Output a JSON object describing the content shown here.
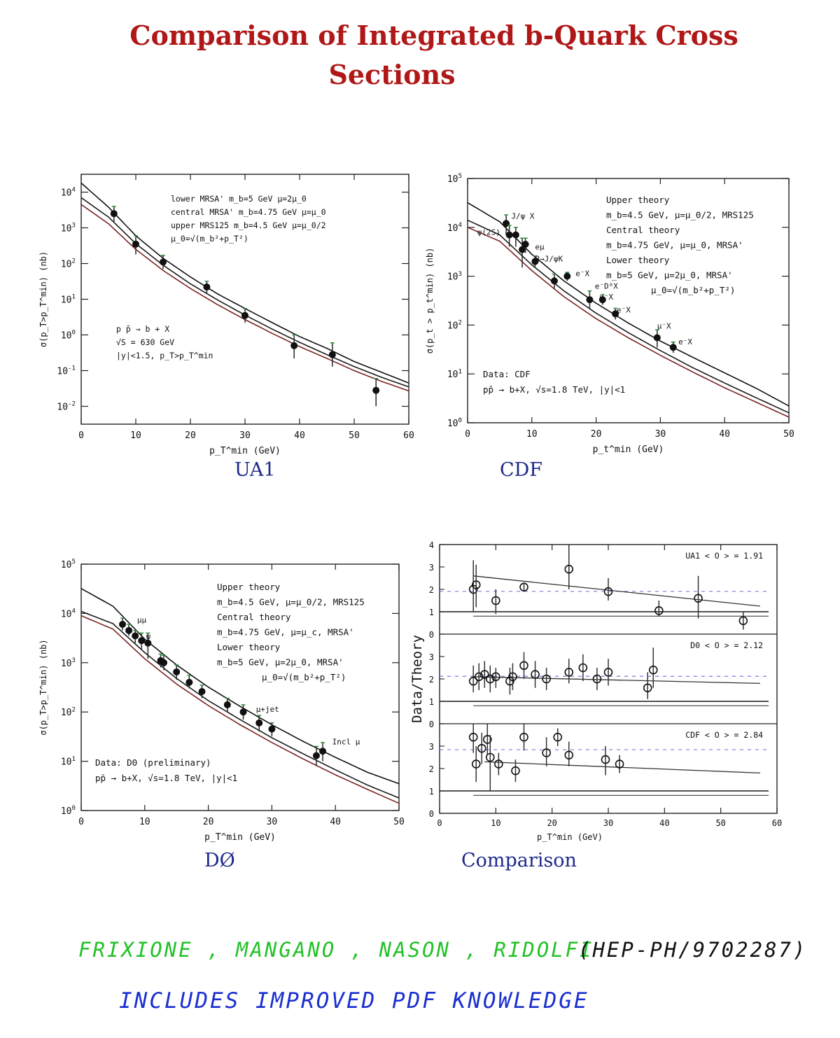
{
  "page": {
    "title_line1": "Comparison of Integrated b-Quark Cross",
    "title_line2": "Sections",
    "footer_line1_authors": "FRIXIONE , MANGANO , NASON , RIDOLFI",
    "footer_line1_ref": "(HEP-PH/9702287)",
    "footer_line2": "INCLUDES IMPROVED PDF KNOWLEDGE",
    "colors": {
      "title": "#b01818",
      "caption": "#1d2a8a",
      "footer1": "#22c228",
      "footer2": "#1a2fd0",
      "ref": "#111111"
    }
  },
  "chart_data": [
    {
      "id": "ua1",
      "type": "scatter",
      "caption": "UA1",
      "xlabel": "p_T^min (GeV)",
      "ylabel": "σ(p_T>p_T^min) (nb)",
      "xlim": [
        0,
        60
      ],
      "ylim_log10": [
        -2.5,
        4.5
      ],
      "yscale": "log",
      "xticks": [
        "0",
        "10",
        "20",
        "30",
        "40",
        "50",
        "60"
      ],
      "yticks": [
        "10^-2",
        "10^-1",
        "10^0",
        "10^1",
        "10^2",
        "10^3",
        "10^4"
      ],
      "legend_text": [
        "lower   MRSA' m_b=5 GeV  μ=2μ_0",
        "central  MRSA' m_b=4.75 GeV  μ=μ_0",
        "upper   MRS125 m_b=4.5 GeV  μ=μ_0/2",
        "μ_0=√(m_b²+p_T²)"
      ],
      "info_text": [
        "p p̄ → b + X",
        "√S = 630 GeV",
        "|y|<1.5, p_T>p_T^min"
      ],
      "curves": [
        {
          "name": "upper",
          "x": [
            0,
            5,
            10,
            15,
            20,
            25,
            30,
            35,
            40,
            45,
            50,
            55,
            60
          ],
          "y": [
            18000,
            3800,
            600,
            140,
            42,
            14,
            5.5,
            2.2,
            0.9,
            0.42,
            0.18,
            0.09,
            0.045
          ]
        },
        {
          "name": "central",
          "x": [
            0,
            5,
            10,
            15,
            20,
            25,
            30,
            35,
            40,
            45,
            50,
            55,
            60
          ],
          "y": [
            7000,
            2000,
            360,
            90,
            27,
            9.5,
            3.6,
            1.45,
            0.62,
            0.28,
            0.13,
            0.065,
            0.035
          ]
        },
        {
          "name": "lower",
          "x": [
            0,
            5,
            10,
            15,
            20,
            25,
            30,
            35,
            40,
            45,
            50,
            55,
            60
          ],
          "y": [
            4500,
            1300,
            250,
            64,
            20,
            7,
            2.7,
            1.1,
            0.47,
            0.22,
            0.1,
            0.05,
            0.027
          ]
        }
      ],
      "points": [
        {
          "x": 6,
          "y": 2500,
          "lo": 1400,
          "hi": 4000
        },
        {
          "x": 10,
          "y": 350,
          "lo": 180,
          "hi": 600
        },
        {
          "x": 15,
          "y": 110,
          "lo": 70,
          "hi": 170
        },
        {
          "x": 23,
          "y": 22,
          "lo": 14,
          "hi": 32
        },
        {
          "x": 30,
          "y": 3.5,
          "lo": 2.2,
          "hi": 5.5
        },
        {
          "x": 39,
          "y": 0.5,
          "lo": 0.22,
          "hi": 1.0
        },
        {
          "x": 46,
          "y": 0.28,
          "lo": 0.13,
          "hi": 0.6
        },
        {
          "x": 54,
          "y": 0.028,
          "lo": 0.01,
          "hi": 0.06
        }
      ]
    },
    {
      "id": "cdf",
      "type": "scatter",
      "caption": "CDF",
      "xlabel": "p_t^min (GeV)",
      "ylabel": "σ(p_t > p_t^min) (nb)",
      "xlim": [
        0,
        50
      ],
      "ylim_log10": [
        0,
        5
      ],
      "yscale": "log",
      "xticks": [
        "0",
        "10",
        "20",
        "30",
        "40",
        "50"
      ],
      "yticks": [
        "10^0",
        "10^1",
        "10^2",
        "10^3",
        "10^4",
        "10^5"
      ],
      "legend_text": [
        "Upper theory",
        "m_b=4.5 GeV, μ=μ_0/2, MRS125",
        "Central theory",
        "m_b=4.75 GeV, μ=μ_0, MRSA'",
        "Lower theory",
        "m_b=5 GeV, μ=2μ_0, MRSA'",
        "μ_0=√(m_b²+p_T²)"
      ],
      "info_text": [
        "Data: CDF",
        "pp̄ → b+X, √s=1.8 TeV, |y|<1"
      ],
      "annotations": [
        {
          "text": "ψ(2S)",
          "x": 1.5,
          "y": 7000
        },
        {
          "text": "J/ψ X",
          "x": 6.8,
          "y": 15000
        },
        {
          "text": "eμ",
          "x": 10.5,
          "y": 3500
        },
        {
          "text": "B→J/ψK",
          "x": 10.5,
          "y": 2000
        },
        {
          "text": "e⁻X",
          "x": 16.8,
          "y": 1000
        },
        {
          "text": "e⁻D⁰X",
          "x": 19.8,
          "y": 550
        },
        {
          "text": "μ⁻X",
          "x": 20.5,
          "y": 330
        },
        {
          "text": "e⁻X",
          "x": 23.2,
          "y": 180
        },
        {
          "text": "μ⁻X",
          "x": 29.5,
          "y": 85
        },
        {
          "text": "e⁻X",
          "x": 32.8,
          "y": 40
        }
      ],
      "curves": [
        {
          "name": "upper",
          "x": [
            0,
            5,
            10,
            15,
            20,
            25,
            30,
            35,
            40,
            45,
            50
          ],
          "y": [
            32000,
            13000,
            2800,
            800,
            280,
            110,
            47,
            22,
            10.5,
            5,
            2.2
          ]
        },
        {
          "name": "central",
          "x": [
            0,
            5,
            10,
            15,
            20,
            25,
            30,
            35,
            40,
            45,
            50
          ],
          "y": [
            14000,
            7000,
            1700,
            500,
            175,
            70,
            30,
            13.5,
            6.5,
            3.2,
            1.6
          ]
        },
        {
          "name": "lower",
          "x": [
            0,
            5,
            10,
            15,
            20,
            25,
            30,
            35,
            40,
            45,
            50
          ],
          "y": [
            10000,
            5200,
            1300,
            380,
            135,
            55,
            24,
            11,
            5.2,
            2.6,
            1.3
          ]
        }
      ],
      "points": [
        {
          "x": 6,
          "y": 12000,
          "lo": 7000,
          "hi": 18000
        },
        {
          "x": 6.5,
          "y": 7000,
          "lo": 4000,
          "hi": 11000
        },
        {
          "x": 7.5,
          "y": 7000,
          "lo": 4000,
          "hi": 10000
        },
        {
          "x": 8.5,
          "y": 3500,
          "lo": 1500,
          "hi": 6000
        },
        {
          "x": 9.0,
          "y": 4500,
          "lo": 3000,
          "hi": 6000
        },
        {
          "x": 10.5,
          "y": 2000,
          "lo": 1500,
          "hi": 2600
        },
        {
          "x": 13.5,
          "y": 800,
          "lo": 550,
          "hi": 1100
        },
        {
          "x": 15.5,
          "y": 1000,
          "lo": 800,
          "hi": 1200
        },
        {
          "x": 19,
          "y": 330,
          "lo": 220,
          "hi": 500
        },
        {
          "x": 21,
          "y": 330,
          "lo": 260,
          "hi": 420
        },
        {
          "x": 23,
          "y": 170,
          "lo": 130,
          "hi": 220
        },
        {
          "x": 29.5,
          "y": 55,
          "lo": 35,
          "hi": 80
        },
        {
          "x": 32,
          "y": 35,
          "lo": 27,
          "hi": 45
        }
      ]
    },
    {
      "id": "d0",
      "type": "scatter",
      "caption": "DØ",
      "xlabel": "p_T^min (GeV)",
      "ylabel": "σ(p_T>p_T^min) (nb)",
      "xlim": [
        0,
        50
      ],
      "ylim_log10": [
        0,
        5
      ],
      "yscale": "log",
      "xticks": [
        "0",
        "10",
        "20",
        "30",
        "40",
        "50"
      ],
      "yticks": [
        "10^0",
        "10^1",
        "10^2",
        "10^3",
        "10^4",
        "10^5"
      ],
      "legend_text": [
        "Upper theory",
        "m_b=4.5 GeV, μ=μ_0/2, MRS125",
        "Central theory",
        "m_b=4.75 GeV, μ=μ_c, MRSA'",
        "Lower theory",
        "m_b=5 GeV, μ=2μ_0, MRSA'",
        "μ_0=√(m_b²+p_T²)"
      ],
      "info_text": [
        "Data: D0 (preliminary)",
        "pp̄ → b+X, √s=1.8 TeV, |y|<1"
      ],
      "annotations": [
        {
          "text": "μμ",
          "x": 8.8,
          "y": 6500
        },
        {
          "text": "ψ",
          "x": 10.2,
          "y": 3000
        },
        {
          "text": "μ+jet",
          "x": 27.5,
          "y": 100
        },
        {
          "text": "Incl μ",
          "x": 39.5,
          "y": 22
        }
      ],
      "curves": [
        {
          "name": "upper",
          "x": [
            0,
            5,
            10,
            15,
            20,
            25,
            30,
            35,
            40,
            45,
            50
          ],
          "y": [
            32000,
            14000,
            3000,
            900,
            320,
            130,
            55,
            25,
            12,
            6,
            3.5
          ]
        },
        {
          "name": "central",
          "x": [
            0,
            5,
            10,
            15,
            20,
            25,
            30,
            35,
            40,
            45,
            50
          ],
          "y": [
            11000,
            6200,
            1600,
            480,
            170,
            70,
            30,
            14,
            6.7,
            3.3,
            1.8
          ]
        },
        {
          "name": "lower",
          "x": [
            0,
            5,
            10,
            15,
            20,
            25,
            30,
            35,
            40,
            45,
            50
          ],
          "y": [
            9000,
            4800,
            1200,
            370,
            135,
            55,
            24,
            11,
            5.3,
            2.7,
            1.4
          ]
        }
      ],
      "points": [
        {
          "x": 6.5,
          "y": 6000,
          "lo": 4500,
          "hi": 8000
        },
        {
          "x": 7.5,
          "y": 4500,
          "lo": 3500,
          "hi": 6000
        },
        {
          "x": 8.5,
          "y": 3500,
          "lo": 2500,
          "hi": 4500
        },
        {
          "x": 9.5,
          "y": 2800,
          "lo": 1800,
          "hi": 4000
        },
        {
          "x": 10.5,
          "y": 2500,
          "lo": 1200,
          "hi": 4000
        },
        {
          "x": 12.5,
          "y": 1100,
          "lo": 800,
          "hi": 1500
        },
        {
          "x": 13,
          "y": 1000,
          "lo": 700,
          "hi": 1400
        },
        {
          "x": 15,
          "y": 650,
          "lo": 450,
          "hi": 900
        },
        {
          "x": 17,
          "y": 400,
          "lo": 300,
          "hi": 550
        },
        {
          "x": 19,
          "y": 260,
          "lo": 190,
          "hi": 350
        },
        {
          "x": 23,
          "y": 140,
          "lo": 100,
          "hi": 190
        },
        {
          "x": 25.5,
          "y": 100,
          "lo": 70,
          "hi": 140
        },
        {
          "x": 28,
          "y": 60,
          "lo": 40,
          "hi": 85
        },
        {
          "x": 30,
          "y": 45,
          "lo": 32,
          "hi": 60
        },
        {
          "x": 37,
          "y": 13,
          "lo": 8,
          "hi": 20
        },
        {
          "x": 38,
          "y": 16,
          "lo": 10,
          "hi": 24
        }
      ]
    },
    {
      "id": "comparison",
      "type": "scatter",
      "caption": "Comparison",
      "xlabel": "p_T^min (GeV)",
      "ylabel": "Data/Theory",
      "xlim": [
        0,
        60
      ],
      "xticks": [
        "0",
        "10",
        "20",
        "30",
        "40",
        "50",
        "60"
      ],
      "panels": [
        {
          "label": "UA1  < O > = 1.91",
          "ylim": [
            0,
            4
          ],
          "yticks": [
            "0",
            "1",
            "2",
            "3",
            "4"
          ],
          "mean": 1.91,
          "ratio_line": {
            "x": [
              6,
              57
            ],
            "y": [
              2.6,
              1.25
            ]
          },
          "points": [
            {
              "x": 6,
              "y": 2.0,
              "lo": 1.0,
              "hi": 3.3
            },
            {
              "x": 6.5,
              "y": 2.2,
              "lo": 1.2,
              "hi": 3.1
            },
            {
              "x": 10,
              "y": 1.5,
              "lo": 0.9,
              "hi": 2.0
            },
            {
              "x": 15,
              "y": 2.1,
              "lo": 1.9,
              "hi": 2.3
            },
            {
              "x": 23,
              "y": 2.9,
              "lo": 2.0,
              "hi": 4.0
            },
            {
              "x": 30,
              "y": 1.9,
              "lo": 1.5,
              "hi": 2.5
            },
            {
              "x": 39,
              "y": 1.05,
              "lo": 0.8,
              "hi": 1.5
            },
            {
              "x": 46,
              "y": 1.6,
              "lo": 0.7,
              "hi": 2.6
            },
            {
              "x": 54,
              "y": 0.6,
              "lo": 0.2,
              "hi": 1.0
            }
          ]
        },
        {
          "label": "D0  < O > = 2.12",
          "ylim": [
            0,
            4
          ],
          "yticks": [
            "0",
            "1",
            "2",
            "3",
            ""
          ],
          "mean": 2.12,
          "ratio_line": {
            "x": [
              6,
              57
            ],
            "y": [
              2.1,
              1.8
            ]
          },
          "points": [
            {
              "x": 6,
              "y": 1.9,
              "lo": 1.4,
              "hi": 2.6
            },
            {
              "x": 7,
              "y": 2.1,
              "lo": 1.5,
              "hi": 2.7
            },
            {
              "x": 8,
              "y": 2.2,
              "lo": 1.6,
              "hi": 2.8
            },
            {
              "x": 9,
              "y": 2.0,
              "lo": 1.4,
              "hi": 2.6
            },
            {
              "x": 10,
              "y": 2.1,
              "lo": 1.6,
              "hi": 2.5
            },
            {
              "x": 12.5,
              "y": 1.9,
              "lo": 1.3,
              "hi": 2.5
            },
            {
              "x": 13,
              "y": 2.1,
              "lo": 1.5,
              "hi": 2.7
            },
            {
              "x": 15,
              "y": 2.6,
              "lo": 2.0,
              "hi": 3.2
            },
            {
              "x": 17,
              "y": 2.2,
              "lo": 1.6,
              "hi": 2.8
            },
            {
              "x": 19,
              "y": 2.0,
              "lo": 1.5,
              "hi": 2.5
            },
            {
              "x": 23,
              "y": 2.3,
              "lo": 1.8,
              "hi": 2.9
            },
            {
              "x": 25.5,
              "y": 2.5,
              "lo": 1.9,
              "hi": 3.1
            },
            {
              "x": 28,
              "y": 2.0,
              "lo": 1.5,
              "hi": 2.5
            },
            {
              "x": 30,
              "y": 2.3,
              "lo": 1.7,
              "hi": 2.9
            },
            {
              "x": 37,
              "y": 1.6,
              "lo": 1.1,
              "hi": 2.3
            },
            {
              "x": 38,
              "y": 2.4,
              "lo": 1.6,
              "hi": 3.4
            }
          ]
        },
        {
          "label": "CDF  < O > = 2.84",
          "ylim": [
            0,
            4
          ],
          "yticks": [
            "0",
            "1",
            "2",
            "3",
            ""
          ],
          "mean": 2.84,
          "ratio_line": {
            "x": [
              8,
              57
            ],
            "y": [
              2.3,
              1.8
            ]
          },
          "points": [
            {
              "x": 6,
              "y": 3.4,
              "lo": 2.7,
              "hi": 4.0
            },
            {
              "x": 6.5,
              "y": 2.2,
              "lo": 1.4,
              "hi": 3.0
            },
            {
              "x": 7.5,
              "y": 2.9,
              "lo": 2.2,
              "hi": 3.6
            },
            {
              "x": 8.5,
              "y": 3.3,
              "lo": 2.6,
              "hi": 4.0
            },
            {
              "x": 9,
              "y": 2.5,
              "lo": 1.0,
              "hi": 3.5
            },
            {
              "x": 10.5,
              "y": 2.2,
              "lo": 1.7,
              "hi": 2.7
            },
            {
              "x": 13.5,
              "y": 1.9,
              "lo": 1.4,
              "hi": 2.4
            },
            {
              "x": 15,
              "y": 3.4,
              "lo": 2.8,
              "hi": 4.0
            },
            {
              "x": 19,
              "y": 2.7,
              "lo": 2.1,
              "hi": 3.4
            },
            {
              "x": 21,
              "y": 3.4,
              "lo": 3.0,
              "hi": 3.8
            },
            {
              "x": 23,
              "y": 2.6,
              "lo": 2.1,
              "hi": 3.2
            },
            {
              "x": 29.5,
              "y": 2.4,
              "lo": 1.7,
              "hi": 3.0
            },
            {
              "x": 32,
              "y": 2.2,
              "lo": 1.8,
              "hi": 2.6
            }
          ]
        }
      ]
    }
  ]
}
